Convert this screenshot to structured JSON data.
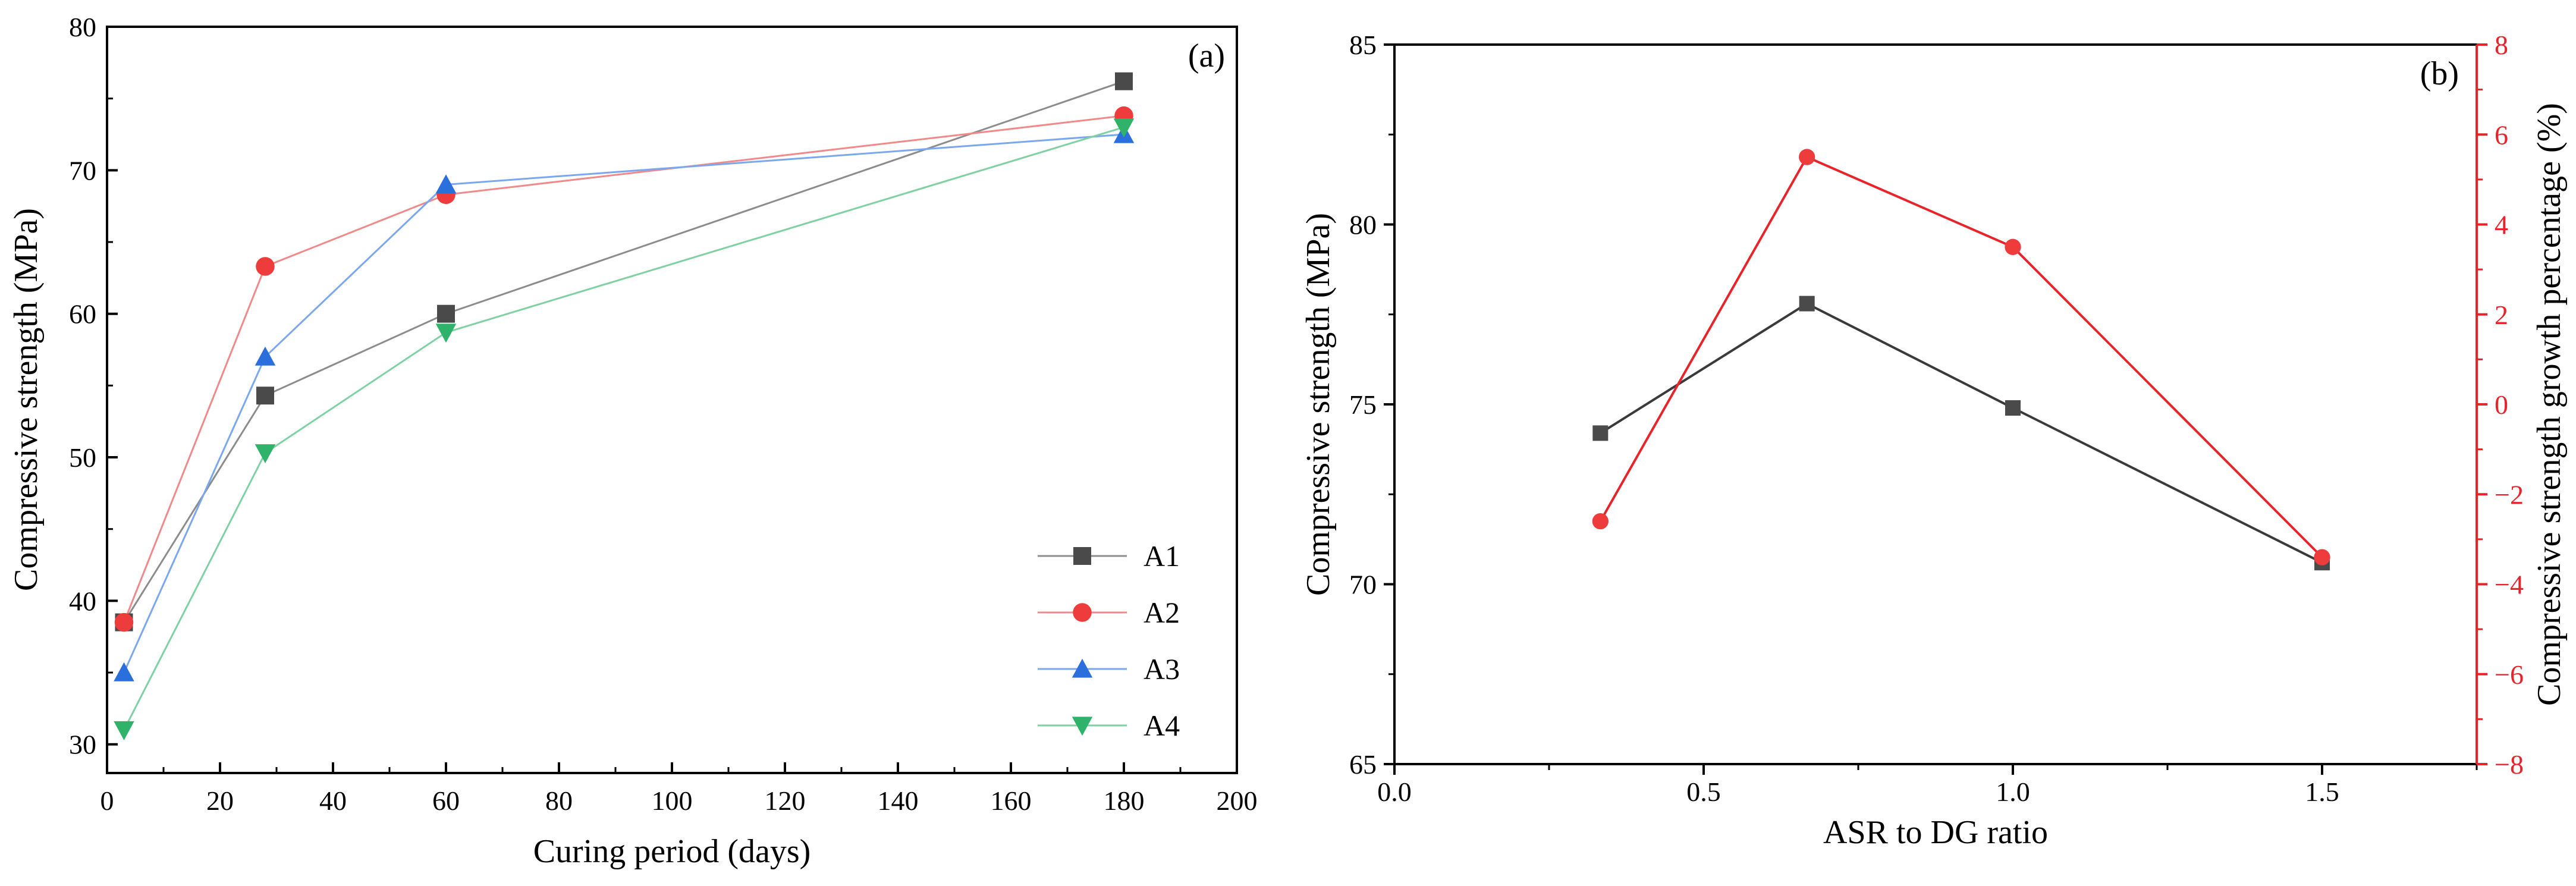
{
  "chart_data": [
    {
      "type": "line",
      "panel_label": "(a)",
      "xlabel": "Curing period (days)",
      "ylabel": "Compressive strength (MPa)",
      "xlim": [
        0,
        200
      ],
      "ylim": [
        28,
        80
      ],
      "xticks": [
        0,
        20,
        40,
        60,
        80,
        100,
        120,
        140,
        160,
        180,
        200
      ],
      "yticks": [
        30,
        40,
        50,
        60,
        70,
        80
      ],
      "x": [
        3,
        28,
        60,
        180
      ],
      "series": [
        {
          "name": "A1",
          "values": [
            38.5,
            54.3,
            60.0,
            76.2
          ],
          "color": "#4a4a4a",
          "line_color": "#8c8c8c",
          "marker": "square"
        },
        {
          "name": "A2",
          "values": [
            38.5,
            63.3,
            68.3,
            73.8
          ],
          "color": "#ee3b3b",
          "line_color": "#f08a8a",
          "marker": "circle"
        },
        {
          "name": "A3",
          "values": [
            35.0,
            57.0,
            69.0,
            72.5
          ],
          "color": "#2a6fdb",
          "line_color": "#7aa7ee",
          "marker": "triangle-up"
        },
        {
          "name": "A4",
          "values": [
            31.0,
            50.3,
            58.7,
            73.0
          ],
          "color": "#2fb36a",
          "line_color": "#7fd1a3",
          "marker": "triangle-down"
        }
      ],
      "legend_position": "bottom-right"
    },
    {
      "type": "line",
      "panel_label": "(b)",
      "xlabel": "ASR to DG ratio",
      "ylabel": "Compressive strength (MPa)",
      "ylabel_right": "Compressive strength growth percentage (%)",
      "xlim": [
        0,
        1.75
      ],
      "ylim": [
        65,
        85
      ],
      "ylim_right": [
        -8,
        8
      ],
      "xticks": [
        0.0,
        0.5,
        1.0,
        1.5
      ],
      "xtick_labels": [
        "0.0",
        "0.5",
        "1.0",
        "1.5"
      ],
      "yticks": [
        65,
        70,
        75,
        80,
        85
      ],
      "yticks_right": [
        -8,
        -6,
        -4,
        -2,
        0,
        2,
        4,
        6,
        8
      ],
      "x": [
        0.333,
        0.667,
        1.0,
        1.5
      ],
      "series": [
        {
          "name": "Compressive strength",
          "axis": "left",
          "values": [
            74.2,
            77.8,
            74.9,
            70.6
          ],
          "color": "#4a4a4a",
          "line_color": "#3a3a3a",
          "marker": "square"
        },
        {
          "name": "Growth percentage",
          "axis": "right",
          "values": [
            -2.6,
            5.5,
            3.5,
            -3.4
          ],
          "color": "#ee3b3b",
          "line_color": "#e8242b",
          "marker": "circle"
        }
      ],
      "right_axis_color": "#e8242b"
    }
  ]
}
